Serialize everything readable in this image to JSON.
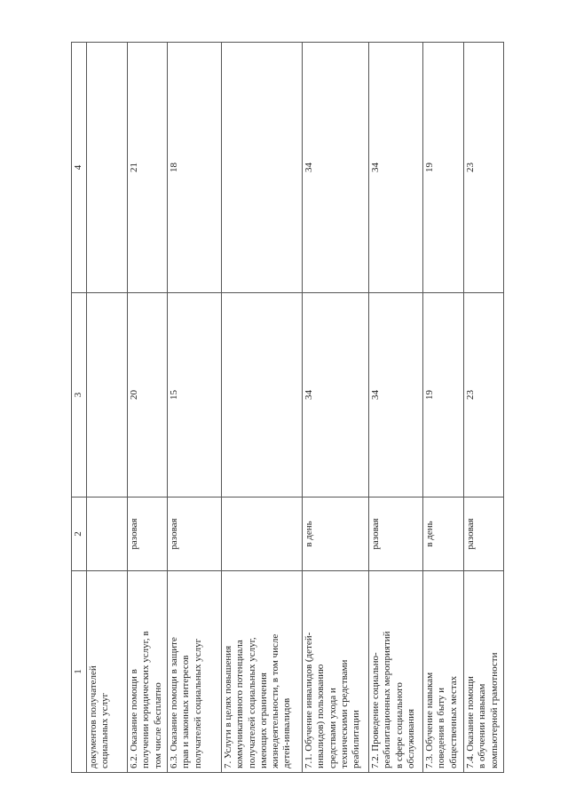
{
  "table": {
    "headers": [
      "1",
      "2",
      "3",
      "4"
    ],
    "rows": [
      {
        "name": "документов получателей\nсоциальных услуг",
        "unit": "",
        "v3": "",
        "v4": ""
      },
      {
        "name": "6.2. Оказание помощи в\nполучении юридических услуг, в\nтом числе бесплатно",
        "unit": "разовая",
        "v3": "20",
        "v4": "21"
      },
      {
        "name": "6.3. Оказание помощи в защите\nправ и законных интересов\nполучателей социальных услуг",
        "unit": "разовая",
        "v3": "15",
        "v4": "18"
      },
      {
        "name": "7. Услуги в целях повышения\nкоммуникативного потенциала\nполучателей социальных услуг,\nимеющих ограничения\nжизнедеятельности, в том числе\nдетей-инвалидов",
        "unit": "",
        "v3": "",
        "v4": ""
      },
      {
        "name": "7.1. Обучение инвалидов (детей-\nинвалидов) пользованию\nсредствами ухода и\nтехническими средствами\nреабилитации",
        "unit": "в день",
        "v3": "34",
        "v4": "34"
      },
      {
        "name": "7.2. Проведение социально-\nреабилитационных мероприятий\nв сфере социального\nобслуживания",
        "unit": "разовая",
        "v3": "34",
        "v4": "34"
      },
      {
        "name": "7.3. Обучение навыкам\nповедения в быту и\nобщественных местах",
        "unit": "в день",
        "v3": "19",
        "v4": "19"
      },
      {
        "name": "7.4. Оказание помощи\nв обучении навыкам\nкомпьютерной грамотности",
        "unit": "разовая",
        "v3": "23",
        "v4": "23"
      }
    ]
  }
}
